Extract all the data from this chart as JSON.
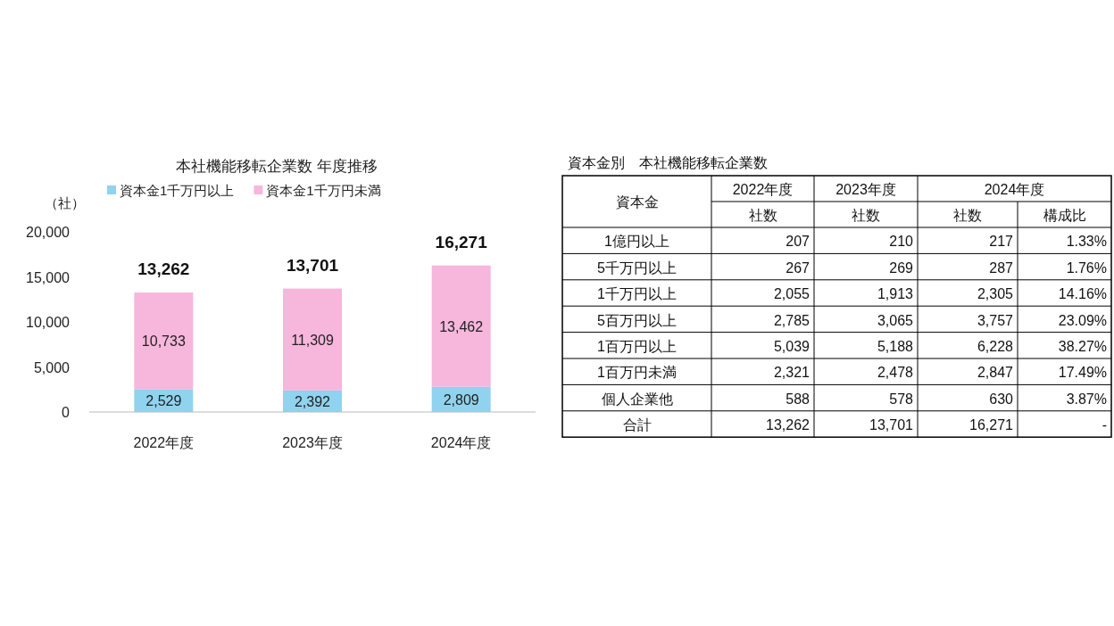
{
  "chart_data": [
    {
      "type": "bar",
      "title": "本社機能移転企業数 年度推移",
      "ylabel": "（社）",
      "categories": [
        "2022年度",
        "2023年度",
        "2024年度"
      ],
      "stacked": true,
      "legend": "top",
      "grid": false,
      "ylim": [
        0,
        20000
      ],
      "yticks": [
        0,
        {
          "value": 5000,
          "label": "5,000"
        },
        {
          "value": 10000,
          "label": "10,000"
        },
        {
          "value": 15000,
          "label": "15,000"
        },
        {
          "value": 20000,
          "label": "20,000"
        }
      ],
      "series": [
        {
          "name": "資本金1千万円以上",
          "color": "#8fd3ef",
          "values": [
            2529,
            2392,
            2809
          ],
          "value_labels": [
            "2,529",
            "2,392",
            "2,809"
          ]
        },
        {
          "name": "資本金1千万円未満",
          "color": "#f7b6dc",
          "values": [
            10733,
            11309,
            13462
          ],
          "value_labels": [
            "10,733",
            "11,309",
            "13,462"
          ]
        }
      ],
      "totals": [
        "13,262",
        "13,701",
        "16,271"
      ]
    },
    {
      "type": "other",
      "title": "資本金別　本社機能移転企業数",
      "annotations": [
        "資本金",
        "2022年度",
        "2023年度",
        "2024年度"
      ],
      "categories": [
        "社数",
        "社数",
        "社数",
        "構成比"
      ],
      "y_categories": [
        "1億円以上",
        "5千万円以上",
        "1千万円以上",
        "5百万円以上",
        "1百万円以上",
        "1百万円未満",
        "個人企業他",
        "合計"
      ],
      "cell_labels": [
        [
          "207",
          "210",
          "217",
          "1.33%"
        ],
        [
          "267",
          "269",
          "287",
          "1.76%"
        ],
        [
          "2,055",
          "1,913",
          "2,305",
          "14.16%"
        ],
        [
          "2,785",
          "3,065",
          "3,757",
          "23.09%"
        ],
        [
          "5,039",
          "5,188",
          "6,228",
          "38.27%"
        ],
        [
          "2,321",
          "2,478",
          "2,847",
          "17.49%"
        ],
        [
          "588",
          "578",
          "630",
          "3.87%"
        ],
        [
          "13,262",
          "13,701",
          "16,271",
          "-"
        ]
      ]
    }
  ]
}
